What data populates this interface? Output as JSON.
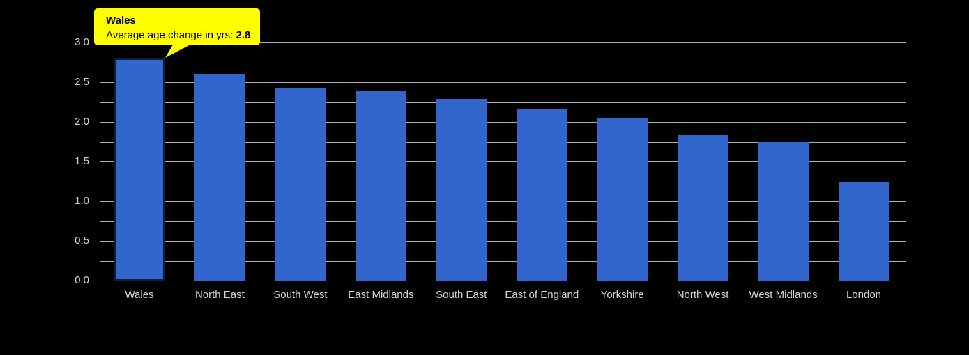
{
  "chart_data": {
    "type": "bar",
    "title": "",
    "categories": [
      "Wales",
      "North East",
      "South West",
      "East Midlands",
      "South East",
      "East of England",
      "Yorkshire",
      "North West",
      "West Midlands",
      "London"
    ],
    "values": [
      2.8,
      2.6,
      2.43,
      2.39,
      2.29,
      2.17,
      2.04,
      1.83,
      1.75,
      1.25
    ],
    "ylabel": "",
    "xlabel": "",
    "ylim": [
      0,
      3.0
    ],
    "y_tick_labels": [
      "0.0",
      "0.5",
      "1.0",
      "1.5",
      "2.0",
      "2.5",
      "3.0"
    ],
    "y_grid_step": 0.25,
    "grid": true,
    "legend": "none",
    "highlighted_index": 0,
    "colors": {
      "background": "#000000",
      "bar_fill": "#3366cc",
      "highlight_border": "#0d1d40",
      "gridline": "#b0b0b0",
      "tick": "#b0b0b0",
      "axis_text": "#d6d6d6"
    }
  },
  "tooltip": {
    "title": "Wales",
    "label": "Average age change in yrs: ",
    "value": "2.8",
    "colors": {
      "background": "#ffff00",
      "text": "#000000"
    }
  }
}
